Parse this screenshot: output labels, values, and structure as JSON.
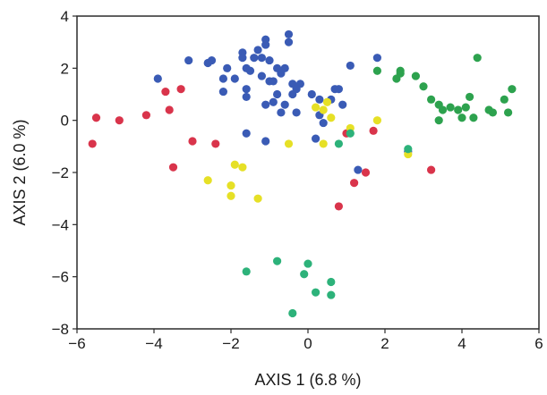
{
  "chart_data": {
    "type": "scatter",
    "xlabel": "AXIS 1 (6.8 %)",
    "ylabel": "AXIS 2 (6.0 %)",
    "xlim": [
      -6,
      6
    ],
    "ylim": [
      -8,
      4
    ],
    "xticks": [
      -6,
      -4,
      -2,
      0,
      2,
      4,
      6
    ],
    "yticks": [
      -8,
      -6,
      -4,
      -2,
      0,
      2,
      4
    ],
    "grid": false,
    "legend": "none",
    "series": [
      {
        "color": "#3a5bb5",
        "points": [
          [
            -0.5,
            3.3
          ],
          [
            -0.5,
            3.0
          ],
          [
            -1.1,
            3.1
          ],
          [
            -1.1,
            2.9
          ],
          [
            -1.3,
            2.7
          ],
          [
            -1.7,
            2.6
          ],
          [
            -1.7,
            2.4
          ],
          [
            -1.4,
            2.4
          ],
          [
            -1.2,
            2.4
          ],
          [
            -1.0,
            2.3
          ],
          [
            -2.5,
            2.3
          ],
          [
            -3.1,
            2.3
          ],
          [
            -2.6,
            2.2
          ],
          [
            -2.1,
            2.0
          ],
          [
            -1.6,
            2.0
          ],
          [
            -0.8,
            2.0
          ],
          [
            -0.6,
            2.0
          ],
          [
            -1.5,
            1.9
          ],
          [
            -0.7,
            1.8
          ],
          [
            -1.2,
            1.7
          ],
          [
            -2.2,
            1.6
          ],
          [
            -1.9,
            1.6
          ],
          [
            -0.9,
            1.5
          ],
          [
            -1.0,
            1.5
          ],
          [
            -0.4,
            1.4
          ],
          [
            -0.2,
            1.4
          ],
          [
            -3.9,
            1.6
          ],
          [
            -2.2,
            1.1
          ],
          [
            -1.6,
            1.2
          ],
          [
            -0.3,
            1.2
          ],
          [
            -1.6,
            0.9
          ],
          [
            -0.8,
            1.0
          ],
          [
            -0.4,
            1.0
          ],
          [
            -0.9,
            0.7
          ],
          [
            -1.1,
            0.6
          ],
          [
            -0.6,
            0.6
          ],
          [
            0.1,
            1.0
          ],
          [
            0.3,
            0.8
          ],
          [
            0.7,
            1.2
          ],
          [
            0.8,
            1.2
          ],
          [
            0.6,
            0.8
          ],
          [
            -0.7,
            0.3
          ],
          [
            -0.3,
            0.3
          ],
          [
            0.3,
            0.2
          ],
          [
            0.4,
            -0.1
          ],
          [
            0.9,
            0.6
          ],
          [
            1.1,
            2.1
          ],
          [
            1.8,
            2.4
          ],
          [
            -1.6,
            -0.5
          ],
          [
            -1.1,
            -0.8
          ],
          [
            0.2,
            -0.7
          ],
          [
            1.3,
            -1.9
          ],
          [
            2.6,
            -1.2
          ]
        ]
      },
      {
        "color": "#d9344b",
        "points": [
          [
            -5.6,
            -0.9
          ],
          [
            -5.5,
            0.1
          ],
          [
            -4.9,
            0.0
          ],
          [
            -4.2,
            0.2
          ],
          [
            -3.7,
            1.1
          ],
          [
            -3.3,
            1.2
          ],
          [
            -3.6,
            0.4
          ],
          [
            -3.0,
            -0.8
          ],
          [
            -2.4,
            -0.9
          ],
          [
            -3.5,
            -1.8
          ],
          [
            1.0,
            -0.5
          ],
          [
            1.7,
            -0.4
          ],
          [
            1.5,
            -2.0
          ],
          [
            1.2,
            -2.4
          ],
          [
            0.8,
            -3.3
          ],
          [
            3.2,
            -1.9
          ]
        ]
      },
      {
        "color": "#e6e026",
        "points": [
          [
            0.2,
            0.5
          ],
          [
            0.4,
            0.4
          ],
          [
            0.5,
            0.7
          ],
          [
            0.6,
            0.1
          ],
          [
            1.1,
            -0.3
          ],
          [
            1.8,
            0.0
          ],
          [
            -0.5,
            -0.9
          ],
          [
            0.4,
            -0.9
          ],
          [
            2.6,
            -1.3
          ],
          [
            -1.9,
            -1.7
          ],
          [
            -1.7,
            -1.8
          ],
          [
            -2.6,
            -2.3
          ],
          [
            -2.0,
            -2.5
          ],
          [
            -2.0,
            -2.9
          ],
          [
            -1.3,
            -3.0
          ]
        ]
      },
      {
        "color": "#2da24e",
        "points": [
          [
            1.8,
            1.9
          ],
          [
            2.3,
            1.6
          ],
          [
            2.4,
            1.8
          ],
          [
            2.4,
            1.9
          ],
          [
            2.8,
            1.7
          ],
          [
            3.0,
            1.3
          ],
          [
            3.2,
            0.8
          ],
          [
            3.4,
            0.6
          ],
          [
            3.5,
            0.4
          ],
          [
            3.7,
            0.5
          ],
          [
            3.9,
            0.4
          ],
          [
            4.0,
            0.1
          ],
          [
            4.1,
            0.5
          ],
          [
            4.2,
            0.9
          ],
          [
            4.3,
            0.1
          ],
          [
            4.4,
            2.4
          ],
          [
            4.7,
            0.4
          ],
          [
            4.8,
            0.3
          ],
          [
            5.1,
            0.8
          ],
          [
            5.2,
            0.3
          ],
          [
            5.3,
            1.2
          ],
          [
            3.4,
            0.0
          ]
        ]
      },
      {
        "color": "#2db27a",
        "points": [
          [
            0.8,
            -0.9
          ],
          [
            1.1,
            -0.5
          ],
          [
            2.6,
            -1.1
          ],
          [
            -1.6,
            -5.8
          ],
          [
            -0.8,
            -5.4
          ],
          [
            0.0,
            -5.5
          ],
          [
            -0.1,
            -5.9
          ],
          [
            0.6,
            -6.2
          ],
          [
            0.6,
            -6.7
          ],
          [
            0.2,
            -6.6
          ],
          [
            -0.4,
            -7.4
          ]
        ]
      }
    ]
  }
}
